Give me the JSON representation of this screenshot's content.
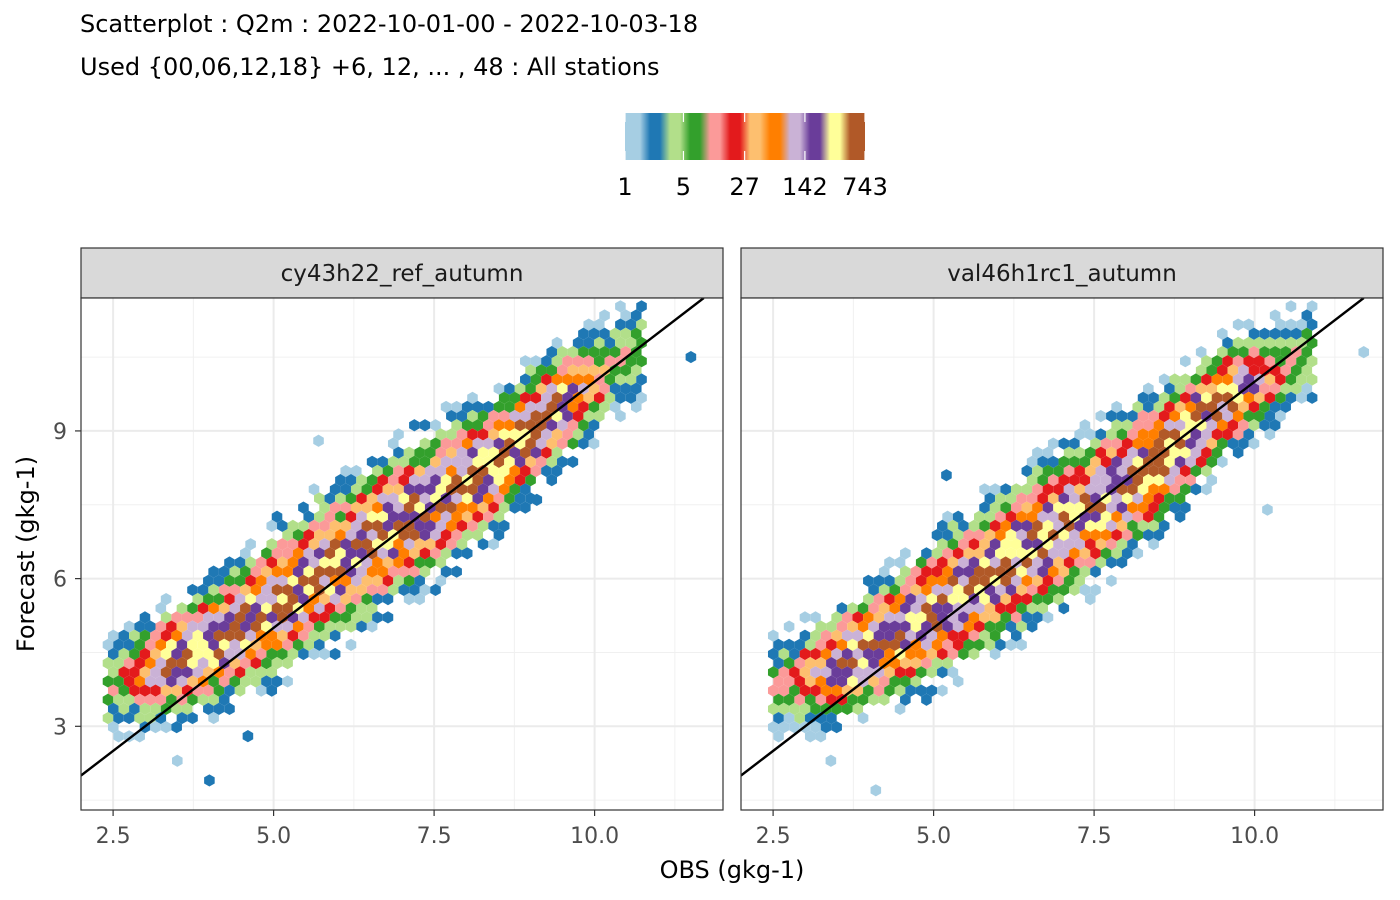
{
  "title": "Scatterplot : Q2m : 2022-10-01-00 - 2022-10-03-18",
  "subtitle": "Used {00,06,12,18} +6, 12, ... , 48 : All stations",
  "chart_data": {
    "type": "scatter",
    "plot_style": "hexbin density",
    "xlabel": "OBS (gkg-1)",
    "ylabel": "Forecast (gkg-1)",
    "xlim": [
      2.0,
      12.0
    ],
    "ylim": [
      1.3,
      11.7
    ],
    "x_ticks": [
      2.5,
      5.0,
      7.5,
      10.0
    ],
    "x_tick_labels": [
      "2.5",
      "5.0",
      "7.5",
      "10.0"
    ],
    "y_ticks": [
      3,
      6,
      9
    ],
    "y_tick_labels": [
      "3",
      "6",
      "9"
    ],
    "reference_line": "y = x",
    "grid": true,
    "legend": {
      "position": "top",
      "title": "",
      "scale": "log",
      "count_range": [
        1,
        743
      ],
      "tick_values": [
        1,
        5,
        27,
        142,
        743
      ],
      "tick_labels": [
        "1",
        "5",
        "27",
        "142",
        "743"
      ],
      "colors": [
        "#a6cee3",
        "#1f78b4",
        "#b2df8a",
        "#33a02c",
        "#fb9a99",
        "#e31a1c",
        "#fdbf6f",
        "#ff7f00",
        "#cab2d6",
        "#6a3d9a",
        "#ffff99",
        "#b15928"
      ]
    },
    "panels": [
      {
        "label": "cy43h22_ref_autumn",
        "density_core": [
          [
            2.6,
            3.9
          ],
          [
            3.5,
            4.35
          ],
          [
            4.5,
            5.0
          ],
          [
            5.5,
            5.9
          ],
          [
            6.5,
            6.75
          ],
          [
            7.5,
            7.55
          ],
          [
            8.5,
            8.4
          ],
          [
            9.5,
            9.55
          ],
          [
            10.3,
            10.3
          ]
        ],
        "outliers": [
          [
            11.5,
            10.5
          ],
          [
            3.5,
            2.3
          ],
          [
            4.0,
            1.9
          ],
          [
            5.7,
            8.8
          ],
          [
            4.6,
            2.8
          ],
          [
            9.1,
            7.6
          ]
        ]
      },
      {
        "label": "val46h1rc1_autumn",
        "density_core": [
          [
            2.7,
            3.85
          ],
          [
            3.5,
            4.2
          ],
          [
            4.5,
            4.9
          ],
          [
            5.5,
            5.75
          ],
          [
            6.5,
            6.6
          ],
          [
            7.5,
            7.45
          ],
          [
            8.5,
            8.4
          ],
          [
            9.5,
            9.6
          ],
          [
            10.5,
            10.3
          ]
        ],
        "outliers": [
          [
            11.7,
            10.6
          ],
          [
            4.1,
            1.7
          ],
          [
            5.2,
            8.1
          ],
          [
            3.4,
            2.3
          ],
          [
            10.2,
            7.4
          ]
        ]
      }
    ]
  }
}
